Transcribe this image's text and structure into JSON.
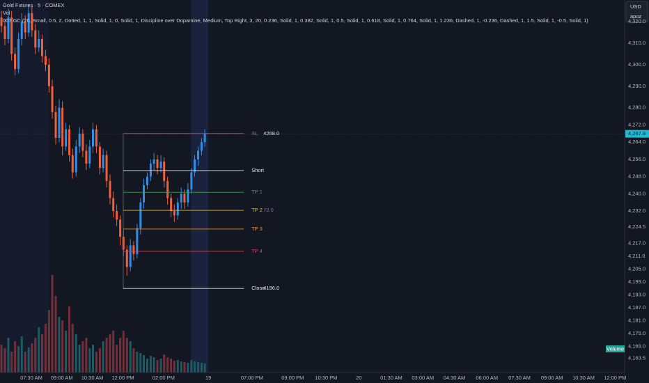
{
  "chart_data": {
    "type": "candlestick",
    "title": "Gold Futures · 5 · COMEX",
    "volume_label": "Vol",
    "indicator_label": "007 GC (20, Small, 0.5, 2, Dotted, 1, 1, Solid, 1, 0, Solid, 1, Discipline over Dopamine, Medium, Top Right, 3, 20, 0.236, Solid, 1, 0.382, Solid, 1, 0.5, Solid, 1, 0.618, Solid, 1, 0.764, Solid, 1, 1.236, Dashed, 1, -0.236, Dashed, 1, 1.5, Solid, 1, -0.5, Solid, 1)",
    "currency": "USD",
    "account": "apoz",
    "volume_tag": "Volume",
    "x": [
      6.03,
      6.2,
      6.37,
      6.53,
      6.7,
      6.87,
      7.03,
      7.2,
      7.37,
      7.53,
      7.7,
      7.87,
      8.03,
      8.2,
      8.37,
      8.53,
      8.7,
      8.87,
      9.03,
      9.2,
      9.37,
      9.53,
      9.7,
      9.87,
      10.03,
      10.2,
      10.37,
      10.53,
      10.7,
      10.87,
      11.03,
      11.2,
      11.37,
      11.53,
      11.7,
      11.87,
      12.03,
      12.2,
      12.37,
      12.53,
      12.7,
      12.87,
      13.03,
      13.2,
      13.37,
      13.53,
      13.7,
      13.87,
      14.03,
      14.2,
      14.37,
      14.53,
      14.7,
      14.87,
      15.03,
      15.2,
      15.37,
      15.53,
      15.7,
      15.87,
      16.03
    ],
    "open": [
      4322,
      4318,
      4312,
      4322,
      4305,
      4298,
      4312,
      4320,
      4315,
      4324,
      4316,
      4308,
      4312,
      4304,
      4300,
      4290,
      4278,
      4266,
      4280,
      4262,
      4270,
      4258,
      4250,
      4262,
      4268,
      4260,
      4254,
      4262,
      4270,
      4262,
      4252,
      4258,
      4246,
      4238,
      4232,
      4228,
      4220,
      4214,
      4206,
      4216,
      4212,
      4224,
      4236,
      4244,
      4248,
      4254,
      4256,
      4252,
      4255,
      4246,
      4238,
      4232,
      4230,
      4236,
      4240,
      4236,
      4242,
      4250,
      4256,
      4260,
      4264
    ],
    "high": [
      4325,
      4321,
      4326,
      4325,
      4308,
      4315,
      4324,
      4323,
      4328,
      4327,
      4319,
      4316,
      4314,
      4307,
      4303,
      4293,
      4281,
      4284,
      4283,
      4273,
      4272,
      4261,
      4265,
      4271,
      4270,
      4263,
      4265,
      4273,
      4272,
      4264,
      4261,
      4260,
      4249,
      4241,
      4235,
      4230,
      4223,
      4216,
      4219,
      4218,
      4226,
      4238,
      4247,
      4250,
      4256,
      4259,
      4258,
      4258,
      4257,
      4248,
      4240,
      4235,
      4238,
      4243,
      4242,
      4245,
      4252,
      4258,
      4262,
      4266,
      4270
    ],
    "low": [
      4315,
      4309,
      4310,
      4302,
      4295,
      4296,
      4309,
      4312,
      4313,
      4313,
      4305,
      4306,
      4301,
      4297,
      4287,
      4275,
      4263,
      4264,
      4258,
      4260,
      4255,
      4247,
      4248,
      4259,
      4257,
      4251,
      4252,
      4259,
      4259,
      4249,
      4250,
      4243,
      4235,
      4229,
      4225,
      4216,
      4211,
      4202,
      4204,
      4209,
      4210,
      4221,
      4233,
      4242,
      4246,
      4251,
      4249,
      4250,
      4243,
      4235,
      4229,
      4227,
      4228,
      4233,
      4233,
      4234,
      4240,
      4248,
      4253,
      4258,
      4262
    ],
    "close": [
      4318,
      4312,
      4322,
      4305,
      4298,
      4312,
      4320,
      4315,
      4324,
      4316,
      4308,
      4312,
      4304,
      4300,
      4290,
      4278,
      4266,
      4280,
      4262,
      4270,
      4258,
      4250,
      4262,
      4268,
      4260,
      4254,
      4262,
      4270,
      4262,
      4252,
      4258,
      4246,
      4238,
      4232,
      4228,
      4220,
      4214,
      4206,
      4216,
      4212,
      4224,
      4236,
      4244,
      4248,
      4254,
      4256,
      4252,
      4255,
      4246,
      4238,
      4232,
      4230,
      4236,
      4240,
      4236,
      4242,
      4250,
      4256,
      4260,
      4264,
      4267.9
    ],
    "volume": [
      4000,
      3500,
      5000,
      3000,
      4500,
      3800,
      5200,
      3000,
      3600,
      4200,
      5000,
      6500,
      5500,
      7000,
      9000,
      14000,
      11000,
      8000,
      7500,
      6000,
      9500,
      7000,
      5500,
      4000,
      4500,
      5000,
      3500,
      4000,
      3000,
      3500,
      4500,
      5000,
      5500,
      6000,
      4000,
      5000,
      6000,
      5000,
      4500,
      3500,
      3000,
      2800,
      2500,
      2000,
      2400,
      2200,
      1800,
      2000,
      2600,
      2200,
      2000,
      1700,
      1800,
      1600,
      1500,
      1400,
      1800,
      1600,
      1500,
      1400,
      1300
    ],
    "up_color": "#2f8fe6",
    "down_color": "#f0603a",
    "volume_up_color": "#1f5a63",
    "volume_down_color": "#74303a",
    "xlim": [
      5.96,
      36.67
    ],
    "xticks": [
      {
        "value": 7.5,
        "label": "07:30 AM"
      },
      {
        "value": 9.0,
        "label": "09:00 AM"
      },
      {
        "value": 10.5,
        "label": "10:30 AM"
      },
      {
        "value": 12.0,
        "label": "12:00 PM"
      },
      {
        "value": 14.0,
        "label": "02:00 PM"
      },
      {
        "value": 16.2,
        "label": "19"
      },
      {
        "value": 18.35,
        "label": "07:00 PM"
      },
      {
        "value": 20.35,
        "label": "09:00 PM"
      },
      {
        "value": 22.0,
        "label": "10:30 PM"
      },
      {
        "value": 23.6,
        "label": "20"
      },
      {
        "value": 25.2,
        "label": "01:30 AM"
      },
      {
        "value": 26.75,
        "label": "03:00 AM"
      },
      {
        "value": 28.3,
        "label": "04:30 AM"
      },
      {
        "value": 29.9,
        "label": "06:00 AM"
      },
      {
        "value": 31.5,
        "label": "07:30 AM"
      },
      {
        "value": 33.1,
        "label": "09:00 AM"
      },
      {
        "value": 34.65,
        "label": "10:30 AM"
      },
      {
        "value": 36.2,
        "label": "12:00 PM"
      }
    ],
    "ylim": [
      4156.9,
      4330.1
    ],
    "yticks": [
      {
        "value": 4320,
        "label": "4,320.0"
      },
      {
        "value": 4310,
        "label": "4,310.0"
      },
      {
        "value": 4300,
        "label": "4,300.0"
      },
      {
        "value": 4290,
        "label": "4,290.0"
      },
      {
        "value": 4280,
        "label": "4,280.0"
      },
      {
        "value": 4272,
        "label": "4,272.0"
      },
      {
        "value": 4264,
        "label": "4,264.0"
      },
      {
        "value": 4256,
        "label": "4,256.0"
      },
      {
        "value": 4248,
        "label": "4,248.0"
      },
      {
        "value": 4240,
        "label": "4,240.0"
      },
      {
        "value": 4232,
        "label": "4,232.0"
      },
      {
        "value": 4224.5,
        "label": "4,224.5"
      },
      {
        "value": 4217,
        "label": "4,217.0"
      },
      {
        "value": 4211,
        "label": "4,211.0"
      },
      {
        "value": 4205,
        "label": "4,205.0"
      },
      {
        "value": 4199,
        "label": "4,199.0"
      },
      {
        "value": 4193,
        "label": "4,193.0"
      },
      {
        "value": 4187,
        "label": "4,187.0"
      },
      {
        "value": 4181,
        "label": "4,181.0"
      },
      {
        "value": 4175,
        "label": "4,175.0"
      },
      {
        "value": 4169,
        "label": "4,169.0"
      },
      {
        "value": 4163.5,
        "label": "4,163.5"
      }
    ],
    "vlim": [
      0,
      15000
    ],
    "last_price": {
      "value": 4267.9,
      "label": "4,267.9",
      "color": "#22b8cf"
    },
    "shaded_ranges": [
      {
        "range": [
          5.96,
          8.36
        ],
        "color": "#151b2c"
      },
      {
        "range": [
          15.35,
          16.2
        ],
        "color": "#19233d"
      }
    ],
    "levels": {
      "start": 12.02,
      "end": 17.95,
      "items": [
        {
          "name": "SL",
          "value": 4268.0,
          "value_label": "4268.0",
          "color": "#d9546a"
        },
        {
          "name": "Short",
          "value": 4250.8,
          "color": "#e6e6e6"
        },
        {
          "name": "TP 1",
          "value": 4240.7,
          "color": "#3fa34d"
        },
        {
          "name": "TP 2",
          "value": 4232.3,
          "color": "#e0c03a",
          "tag": "72.0",
          "tag_color": "#b04fd8"
        },
        {
          "name": "TP 3",
          "value": 4223.6,
          "color": "#e8902c"
        },
        {
          "name": "TP 4",
          "value": 4213.3,
          "color": "#d9465a"
        },
        {
          "name": "Close",
          "value": 4196.0,
          "value_label": "4196.0",
          "color": "#e6e6e6"
        }
      ]
    }
  }
}
